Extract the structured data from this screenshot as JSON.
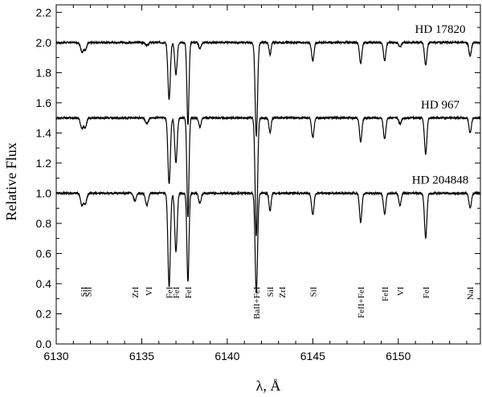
{
  "chart_data": {
    "type": "line",
    "xlabel": "λ, Å",
    "ylabel": "Relative Flux",
    "xlim": [
      6130,
      6154.8
    ],
    "ylim": [
      0.0,
      2.25
    ],
    "x_ticks": [
      6130,
      6135,
      6140,
      6145,
      6150
    ],
    "x_tick_labels": [
      "6130",
      "6135",
      "6140",
      "6145",
      "6150"
    ],
    "y_ticks": [
      0.0,
      0.2,
      0.4,
      0.6,
      0.8,
      1.0,
      1.2,
      1.4,
      1.6,
      1.8,
      2.0,
      2.2
    ],
    "y_tick_labels": [
      "0.0",
      "0.2",
      "0.4",
      "0.6",
      "0.8",
      "1.0",
      "1.2",
      "1.4",
      "1.6",
      "1.8",
      "2.0",
      "2.2"
    ],
    "grid": false,
    "series": [
      {
        "name": "HD 17820",
        "continuum": 2.0,
        "lines": [
          {
            "x": 6131.5,
            "depth": 0.06,
            "width": 0.08
          },
          {
            "x": 6131.7,
            "depth": 0.05,
            "width": 0.08
          },
          {
            "x": 6135.3,
            "depth": 0.02,
            "width": 0.08
          },
          {
            "x": 6136.6,
            "depth": 0.38,
            "width": 0.07
          },
          {
            "x": 6137.0,
            "depth": 0.21,
            "width": 0.07
          },
          {
            "x": 6137.7,
            "depth": 0.55,
            "width": 0.06
          },
          {
            "x": 6138.4,
            "depth": 0.04,
            "width": 0.07
          },
          {
            "x": 6141.7,
            "depth": 0.62,
            "width": 0.07
          },
          {
            "x": 6142.5,
            "depth": 0.08,
            "width": 0.06
          },
          {
            "x": 6145.0,
            "depth": 0.12,
            "width": 0.07
          },
          {
            "x": 6147.8,
            "depth": 0.14,
            "width": 0.07
          },
          {
            "x": 6149.2,
            "depth": 0.12,
            "width": 0.07
          },
          {
            "x": 6150.1,
            "depth": 0.03,
            "width": 0.07
          },
          {
            "x": 6151.6,
            "depth": 0.15,
            "width": 0.07
          },
          {
            "x": 6154.2,
            "depth": 0.09,
            "width": 0.07
          }
        ]
      },
      {
        "name": "HD 967",
        "continuum": 1.5,
        "lines": [
          {
            "x": 6131.5,
            "depth": 0.07,
            "width": 0.08
          },
          {
            "x": 6131.7,
            "depth": 0.06,
            "width": 0.08
          },
          {
            "x": 6135.3,
            "depth": 0.04,
            "width": 0.08
          },
          {
            "x": 6136.6,
            "depth": 0.44,
            "width": 0.07
          },
          {
            "x": 6137.0,
            "depth": 0.3,
            "width": 0.07
          },
          {
            "x": 6137.7,
            "depth": 0.66,
            "width": 0.06
          },
          {
            "x": 6138.4,
            "depth": 0.06,
            "width": 0.07
          },
          {
            "x": 6141.7,
            "depth": 0.78,
            "width": 0.07
          },
          {
            "x": 6142.5,
            "depth": 0.1,
            "width": 0.06
          },
          {
            "x": 6145.0,
            "depth": 0.13,
            "width": 0.07
          },
          {
            "x": 6147.8,
            "depth": 0.16,
            "width": 0.07
          },
          {
            "x": 6149.2,
            "depth": 0.14,
            "width": 0.07
          },
          {
            "x": 6150.1,
            "depth": 0.04,
            "width": 0.07
          },
          {
            "x": 6151.6,
            "depth": 0.24,
            "width": 0.07
          },
          {
            "x": 6154.2,
            "depth": 0.1,
            "width": 0.07
          }
        ]
      },
      {
        "name": "HD 204848",
        "continuum": 1.0,
        "lines": [
          {
            "x": 6131.5,
            "depth": 0.08,
            "width": 0.08
          },
          {
            "x": 6131.7,
            "depth": 0.07,
            "width": 0.08
          },
          {
            "x": 6134.6,
            "depth": 0.05,
            "width": 0.08
          },
          {
            "x": 6135.3,
            "depth": 0.08,
            "width": 0.08
          },
          {
            "x": 6136.6,
            "depth": 0.62,
            "width": 0.07
          },
          {
            "x": 6137.0,
            "depth": 0.39,
            "width": 0.07
          },
          {
            "x": 6137.7,
            "depth": 0.59,
            "width": 0.06
          },
          {
            "x": 6138.4,
            "depth": 0.07,
            "width": 0.07
          },
          {
            "x": 6141.7,
            "depth": 0.66,
            "width": 0.07
          },
          {
            "x": 6142.5,
            "depth": 0.12,
            "width": 0.06
          },
          {
            "x": 6145.0,
            "depth": 0.14,
            "width": 0.07
          },
          {
            "x": 6147.8,
            "depth": 0.19,
            "width": 0.07
          },
          {
            "x": 6149.2,
            "depth": 0.14,
            "width": 0.07
          },
          {
            "x": 6150.1,
            "depth": 0.08,
            "width": 0.07
          },
          {
            "x": 6151.6,
            "depth": 0.3,
            "width": 0.07
          },
          {
            "x": 6154.2,
            "depth": 0.1,
            "width": 0.07
          }
        ]
      }
    ],
    "line_identifications": [
      {
        "label": "SiI",
        "x": 6131.6
      },
      {
        "label": "SiI",
        "x": 6131.85
      },
      {
        "label": "ZrI",
        "x": 6134.6
      },
      {
        "label": "VI",
        "x": 6135.4
      },
      {
        "label": "FeI",
        "x": 6136.6
      },
      {
        "label": "FeI",
        "x": 6137.0
      },
      {
        "label": "FeI",
        "x": 6137.7
      },
      {
        "label": "BaII+FeI",
        "x": 6141.7
      },
      {
        "label": "SiI",
        "x": 6142.5
      },
      {
        "label": "ZrI",
        "x": 6143.2
      },
      {
        "label": "SiI",
        "x": 6145.0
      },
      {
        "label": "FeII+FeI",
        "x": 6147.8
      },
      {
        "label": "FeII",
        "x": 6149.2
      },
      {
        "label": "VI",
        "x": 6150.1
      },
      {
        "label": "FeI",
        "x": 6151.6
      },
      {
        "label": "NaI",
        "x": 6154.2
      }
    ]
  }
}
